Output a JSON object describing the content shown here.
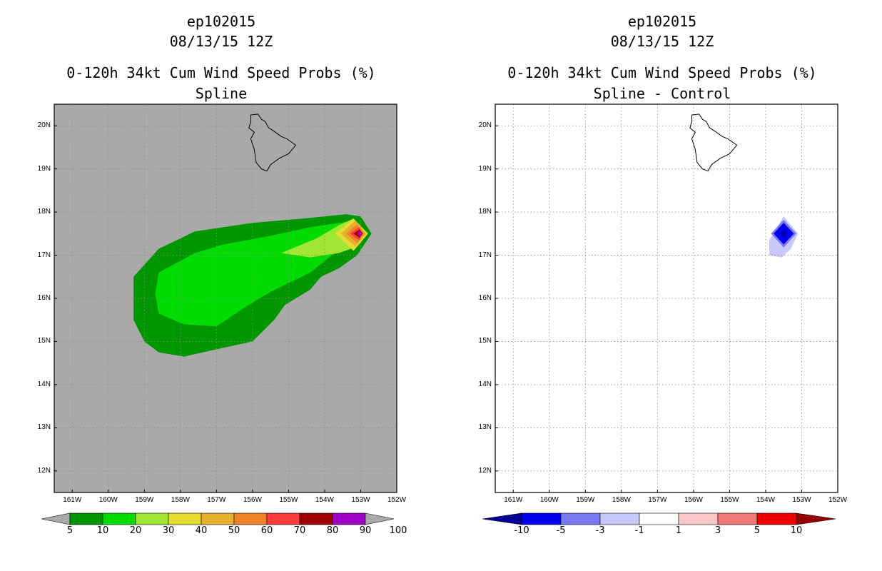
{
  "chart_data": [
    {
      "type": "contour",
      "header": {
        "line1": "ep102015",
        "line2": "08/13/15 12Z",
        "line3": "0-120h 34kt Cum Wind Speed Probs (%)",
        "line4": "Spline"
      },
      "xlim": [
        -161.5,
        -152
      ],
      "ylim": [
        11.5,
        20.5
      ],
      "xticks": [
        {
          "v": -161,
          "label": "161W"
        },
        {
          "v": -160,
          "label": "160W"
        },
        {
          "v": -159,
          "label": "159W"
        },
        {
          "v": -158,
          "label": "158W"
        },
        {
          "v": -157,
          "label": "157W"
        },
        {
          "v": -156,
          "label": "156W"
        },
        {
          "v": -155,
          "label": "155W"
        },
        {
          "v": -154,
          "label": "154W"
        },
        {
          "v": -153,
          "label": "153W"
        },
        {
          "v": -152,
          "label": "152W"
        }
      ],
      "yticks": [
        {
          "v": 20,
          "label": "20N"
        },
        {
          "v": 19,
          "label": "19N"
        },
        {
          "v": 18,
          "label": "18N"
        },
        {
          "v": 17,
          "label": "17N"
        },
        {
          "v": 16,
          "label": "16N"
        },
        {
          "v": 15,
          "label": "15N"
        },
        {
          "v": 14,
          "label": "14N"
        },
        {
          "v": 13,
          "label": "13N"
        },
        {
          "v": 12,
          "label": "12N"
        }
      ],
      "background": "#a9a9a9",
      "contours": [
        {
          "level": 5,
          "color": "#009600",
          "points": [
            [
              -159.3,
              16.5
            ],
            [
              -158.6,
              17.15
            ],
            [
              -157.6,
              17.55
            ],
            [
              -156,
              17.75
            ],
            [
              -154.6,
              17.85
            ],
            [
              -153.4,
              17.95
            ],
            [
              -153.0,
              17.9
            ],
            [
              -152.7,
              17.5
            ],
            [
              -153.1,
              17.0
            ],
            [
              -153.6,
              16.7
            ],
            [
              -154.1,
              16.5
            ],
            [
              -154.4,
              16.2
            ],
            [
              -155.1,
              15.85
            ],
            [
              -155.4,
              15.5
            ],
            [
              -156.0,
              15.0
            ],
            [
              -157.1,
              14.8
            ],
            [
              -157.9,
              14.65
            ],
            [
              -158.6,
              14.75
            ],
            [
              -159.0,
              15.0
            ],
            [
              -159.3,
              15.5
            ],
            [
              -159.3,
              16.0
            ]
          ]
        },
        {
          "level": 10,
          "color": "#00dc00",
          "points": [
            [
              -158.6,
              16.6
            ],
            [
              -157.6,
              17.05
            ],
            [
              -156.8,
              17.25
            ],
            [
              -155.5,
              17.45
            ],
            [
              -154.4,
              17.65
            ],
            [
              -153.2,
              17.8
            ],
            [
              -152.85,
              17.5
            ],
            [
              -153.2,
              17.25
            ],
            [
              -153.8,
              17.0
            ],
            [
              -154.4,
              16.6
            ],
            [
              -155.5,
              16.15
            ],
            [
              -156.2,
              15.8
            ],
            [
              -157.0,
              15.35
            ],
            [
              -157.9,
              15.4
            ],
            [
              -158.6,
              15.65
            ],
            [
              -158.7,
              16.1
            ]
          ]
        },
        {
          "level": 20,
          "color": "#a0e632",
          "points": [
            [
              -155.2,
              17.05
            ],
            [
              -154.2,
              17.4
            ],
            [
              -153.6,
              17.7
            ],
            [
              -153.2,
              17.85
            ],
            [
              -152.8,
              17.5
            ],
            [
              -153.1,
              17.2
            ],
            [
              -153.6,
              17.05
            ],
            [
              -154.4,
              16.95
            ]
          ]
        },
        {
          "level": 30,
          "color": "#e6dc32",
          "points": [
            [
              -153.7,
              17.5
            ],
            [
              -153.2,
              17.85
            ],
            [
              -152.8,
              17.5
            ],
            [
              -153.2,
              17.1
            ]
          ]
        },
        {
          "level": 40,
          "color": "#e6af2d",
          "points": [
            [
              -153.55,
              17.5
            ],
            [
              -153.15,
              17.8
            ],
            [
              -152.85,
              17.5
            ],
            [
              -153.15,
              17.2
            ]
          ]
        },
        {
          "level": 50,
          "color": "#f08228",
          "points": [
            [
              -153.4,
              17.5
            ],
            [
              -153.1,
              17.72
            ],
            [
              -152.9,
              17.5
            ],
            [
              -153.1,
              17.28
            ]
          ]
        },
        {
          "level": 60,
          "color": "#fa3c3c",
          "points": [
            [
              -153.3,
              17.5
            ],
            [
              -153.05,
              17.65
            ],
            [
              -152.93,
              17.5
            ],
            [
              -153.05,
              17.35
            ]
          ]
        },
        {
          "level": 70,
          "color": "#a00000",
          "points": [
            [
              -153.2,
              17.5
            ],
            [
              -153.03,
              17.6
            ],
            [
              -152.95,
              17.5
            ],
            [
              -153.03,
              17.4
            ]
          ]
        },
        {
          "level": 80,
          "color": "#a000c8",
          "points": [
            [
              -153.1,
              17.5
            ],
            [
              -153.02,
              17.56
            ],
            [
              -152.97,
              17.5
            ],
            [
              -153.02,
              17.44
            ]
          ]
        }
      ],
      "colorbar": {
        "colors": [
          "#009600",
          "#00dc00",
          "#a0e632",
          "#e6dc32",
          "#e6af2d",
          "#f08228",
          "#fa3c3c",
          "#a00000",
          "#a000c8"
        ],
        "labels": [
          "5",
          "10",
          "20",
          "30",
          "40",
          "50",
          "60",
          "70",
          "80",
          "90",
          "100"
        ]
      }
    },
    {
      "type": "contour",
      "header": {
        "line1": "ep102015",
        "line2": "08/13/15 12Z",
        "line3": "0-120h 34kt Cum Wind Speed Probs (%)",
        "line4": "Spline - Control"
      },
      "xlim": [
        -161.5,
        -152
      ],
      "ylim": [
        11.5,
        20.5
      ],
      "xticks": [
        {
          "v": -161,
          "label": "161W"
        },
        {
          "v": -160,
          "label": "160W"
        },
        {
          "v": -159,
          "label": "159W"
        },
        {
          "v": -158,
          "label": "158W"
        },
        {
          "v": -157,
          "label": "157W"
        },
        {
          "v": -156,
          "label": "156W"
        },
        {
          "v": -155,
          "label": "155W"
        },
        {
          "v": -154,
          "label": "154W"
        },
        {
          "v": -153,
          "label": "153W"
        },
        {
          "v": -152,
          "label": "152W"
        }
      ],
      "yticks": [
        {
          "v": 20,
          "label": "20N"
        },
        {
          "v": 19,
          "label": "19N"
        },
        {
          "v": 18,
          "label": "18N"
        },
        {
          "v": 17,
          "label": "17N"
        },
        {
          "v": 16,
          "label": "16N"
        },
        {
          "v": 15,
          "label": "15N"
        },
        {
          "v": 14,
          "label": "14N"
        },
        {
          "v": 13,
          "label": "13N"
        },
        {
          "v": 12,
          "label": "12N"
        }
      ],
      "background": "#ffffff",
      "contours": [
        {
          "level": -1,
          "color": "#c8c8fa",
          "points": [
            [
              -153.5,
              17.9
            ],
            [
              -153.1,
              17.5
            ],
            [
              -153.3,
              17.15
            ],
            [
              -153.55,
              16.95
            ],
            [
              -153.9,
              17.0
            ],
            [
              -153.9,
              17.35
            ]
          ]
        },
        {
          "level": -3,
          "color": "#7878f0",
          "points": [
            [
              -153.5,
              17.82
            ],
            [
              -153.15,
              17.5
            ],
            [
              -153.5,
              17.18
            ],
            [
              -153.85,
              17.5
            ]
          ]
        },
        {
          "level": -5,
          "color": "#0000f0",
          "points": [
            [
              -153.5,
              17.75
            ],
            [
              -153.22,
              17.5
            ],
            [
              -153.5,
              17.25
            ],
            [
              -153.78,
              17.5
            ]
          ]
        },
        {
          "level": -10,
          "color": "#000096",
          "points": [
            [
              -153.5,
              17.58
            ],
            [
              -153.42,
              17.5
            ],
            [
              -153.5,
              17.42
            ],
            [
              -153.58,
              17.5
            ]
          ]
        }
      ],
      "colorbar": {
        "colors": [
          "#0000f0",
          "#7878f0",
          "#c8c8fa",
          "#ffffff",
          "#fac8c8",
          "#f07878",
          "#f00000"
        ],
        "end_left": "#000096",
        "end_right": "#960000",
        "labels": [
          "-10",
          "-5",
          "-3",
          "-1",
          "1",
          "3",
          "5",
          "10"
        ]
      }
    }
  ],
  "island_outline": [
    [
      -156.05,
      20.25
    ],
    [
      -155.85,
      20.27
    ],
    [
      -155.75,
      20.15
    ],
    [
      -155.65,
      20.1
    ],
    [
      -155.55,
      19.95
    ],
    [
      -155.45,
      19.9
    ],
    [
      -155.2,
      19.75
    ],
    [
      -155.05,
      19.7
    ],
    [
      -154.8,
      19.55
    ],
    [
      -155.0,
      19.35
    ],
    [
      -155.25,
      19.25
    ],
    [
      -155.5,
      19.1
    ],
    [
      -155.6,
      18.95
    ],
    [
      -155.75,
      19.0
    ],
    [
      -155.9,
      19.15
    ],
    [
      -155.95,
      19.45
    ],
    [
      -156.05,
      19.7
    ],
    [
      -155.95,
      19.85
    ],
    [
      -156.1,
      19.95
    ],
    [
      -156.05,
      20.1
    ]
  ]
}
